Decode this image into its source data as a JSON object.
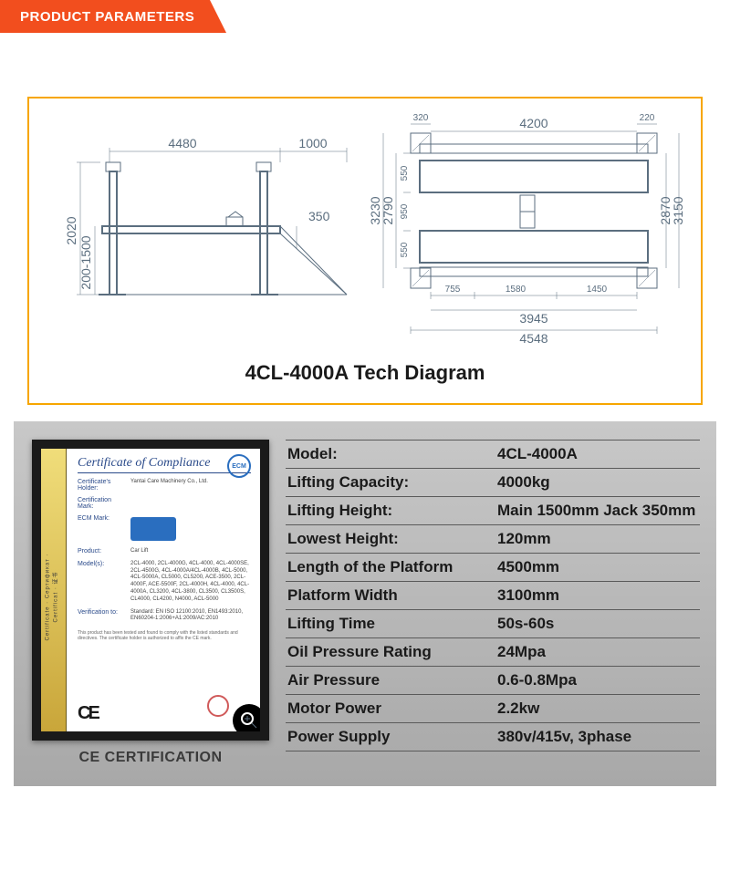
{
  "header": {
    "title": "PRODUCT PARAMETERS",
    "accent_color": "#f24e1e",
    "accent_shadow": "#000000"
  },
  "diagram": {
    "title": "4CL-4000A Tech Diagram",
    "border_color": "#f7a600",
    "stroke_color": "#5b6e7f",
    "side_view": {
      "dims": {
        "overall_height": "2020",
        "min_max_height": "200-1500",
        "platform_length": "4480",
        "ramp_length": "1000",
        "ramp_rise": "350"
      }
    },
    "top_view": {
      "dims": {
        "post_w1": "320",
        "post_w2": "220",
        "inner_length": "4200",
        "outer_width": "3230",
        "runway_gap_top": "550",
        "mid_gap": "950",
        "runway_gap_bot": "550",
        "inner_width": "2790",
        "outer_width_right": "3150",
        "inner_width_right": "2870",
        "seg1": "755",
        "seg2": "1580",
        "seg3": "1450",
        "inner_length2": "3945",
        "overall_length": "4548"
      }
    }
  },
  "certificate": {
    "caption": "CE CERTIFICATION",
    "title": "Certificate of Compliance",
    "side_label": "Certificate · Сертификат · Certificat · 证书",
    "badge": "ECM",
    "fields": [
      {
        "k": "Certificate's Holder:",
        "v": "Yantai Care Machinery Co., Ltd."
      },
      {
        "k": "Certification Mark:",
        "v": ""
      },
      {
        "k": "ECM Mark:",
        "v": ""
      },
      {
        "k": "Product:",
        "v": "Car Lift"
      },
      {
        "k": "Model(s):",
        "v": "2CL-4000, 2CL-4000G, 4CL-4000, 4CL-4000SE, 2CL-4500G, 4CL-4000A/4CL-4000B, 4CL-5000, 4CL-5000A, CL5000, CL5200, ACE-3500, 2CL-4000F, ACE-5500F, 2CL-4000H, 4CL-4000, 4CL-4000A, CL3200, 4CL-3800, CL3500, CL3500S, CL4000, CL4200, N4000, ACL-5000"
      },
      {
        "k": "Verification to:",
        "v": "Standard: EN ISO 12100:2010, EN1493:2010, EN60204-1:2006+A1:2009/AC:2010"
      }
    ],
    "footnote": "This product has been tested and found to comply with the listed standards and directives. The certificate holder is authorized to affix the CE mark.",
    "ce_label": "CE"
  },
  "specs": {
    "rows": [
      {
        "label": "Model:",
        "value": "4CL-4000A"
      },
      {
        "label": "Lifting Capacity:",
        "value": "4000kg"
      },
      {
        "label": "Lifting Height:",
        "value": "Main 1500mm  Jack 350mm"
      },
      {
        "label": "Lowest Height:",
        "value": "120mm"
      },
      {
        "label": "Length of the Platform",
        "value": "4500mm"
      },
      {
        "label": "Platform Width",
        "value": "3100mm"
      },
      {
        "label": "Lifting Time",
        "value": "50s-60s"
      },
      {
        "label": "Oil Pressure Rating",
        "value": "24Mpa"
      },
      {
        "label": "Air Pressure",
        "value": " 0.6-0.8Mpa"
      },
      {
        "label": "Motor Power",
        "value": "2.2kw"
      },
      {
        "label": "Power Supply",
        "value": "380v/415v, 3phase"
      }
    ]
  }
}
